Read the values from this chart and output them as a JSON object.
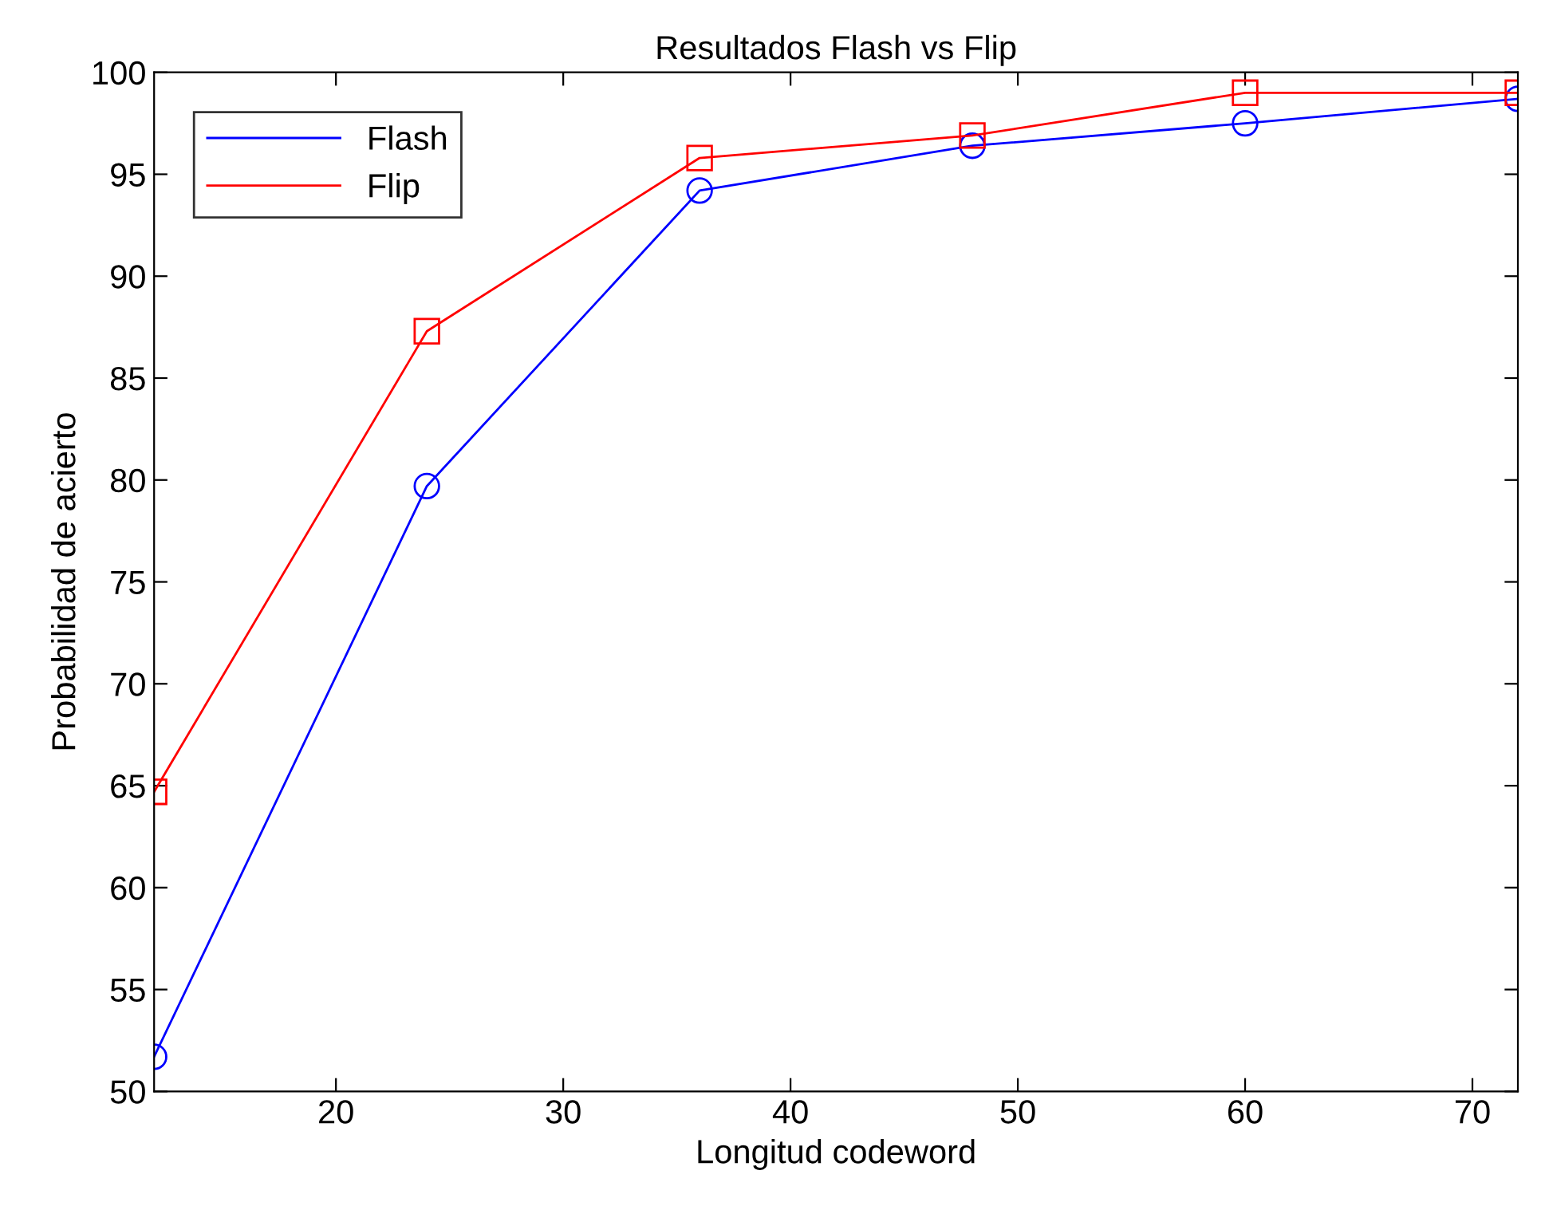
{
  "chart_data": {
    "type": "line",
    "title": "Resultados Flash vs Flip",
    "xlabel": "Longitud codeword",
    "ylabel": "Probabilidad de acierto",
    "x": [
      12,
      24,
      36,
      48,
      60,
      72
    ],
    "series": [
      {
        "name": "Flash",
        "color": "#0000ff",
        "marker": "circle",
        "values": [
          51.7,
          79.7,
          94.2,
          96.4,
          97.5,
          98.7
        ]
      },
      {
        "name": "Flip",
        "color": "#ff0000",
        "marker": "square",
        "values": [
          64.7,
          87.3,
          95.8,
          96.9,
          99.0,
          99.0
        ]
      }
    ],
    "xlim": [
      12,
      72
    ],
    "xticks": [
      20,
      30,
      40,
      50,
      60,
      70
    ],
    "ylim": [
      50,
      100
    ],
    "yticks": [
      50,
      55,
      60,
      65,
      70,
      75,
      80,
      85,
      90,
      95,
      100
    ],
    "grid": false,
    "legend": "top left",
    "line_style": "solid"
  }
}
